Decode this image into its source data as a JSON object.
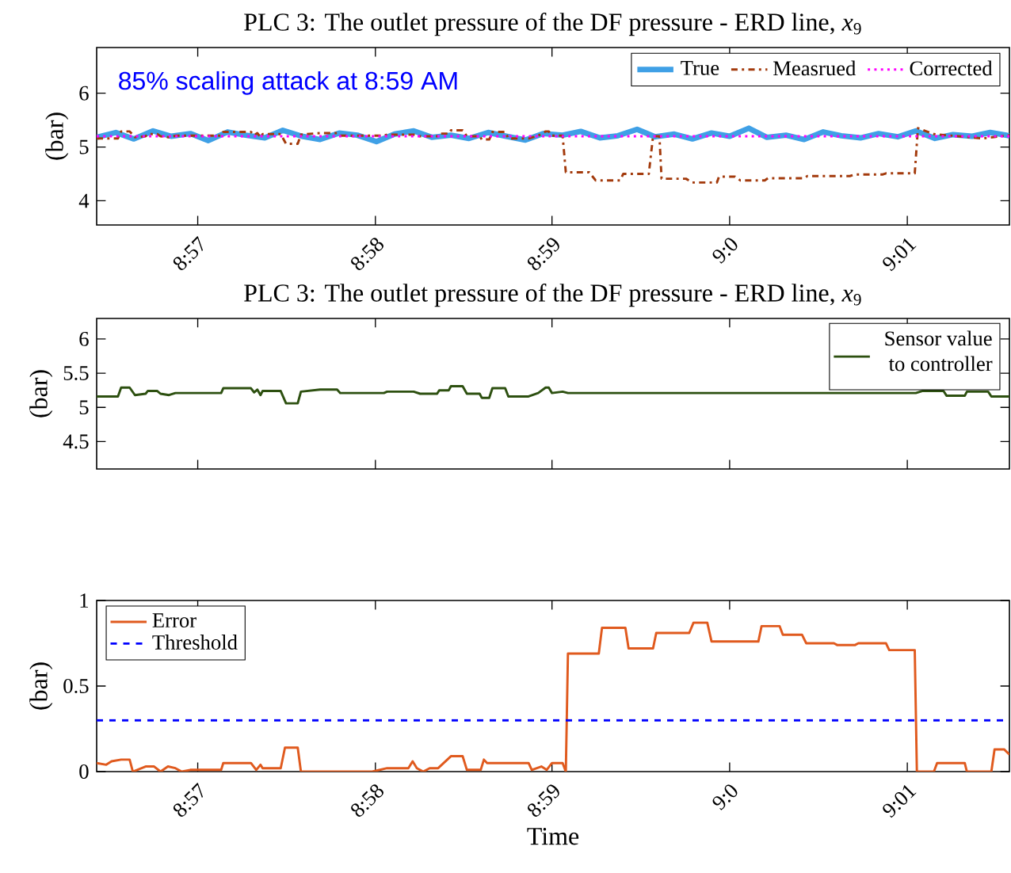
{
  "chart_data": [
    {
      "type": "line",
      "title": "PLC 3: The outlet pressure of the DF pressure - ERD line, *x*$_{9}$",
      "ylabel": "(bar)",
      "annotations": [
        "85% scaling attack at 8:59 AM"
      ],
      "xlim": [
        8.9405,
        9.0263
      ],
      "ylim": [
        3.55,
        6.85
      ],
      "xticks": [
        {
          "value": 8.95,
          "label": "8:57"
        },
        {
          "value": 8.9667,
          "label": "8:58"
        },
        {
          "value": 8.9833,
          "label": "8:59"
        },
        {
          "value": 9.0,
          "label": "9:0"
        },
        {
          "value": 9.0167,
          "label": "9:01"
        }
      ],
      "yticks": [
        4,
        5,
        6
      ],
      "legend": "top right",
      "series": [
        {
          "name": "True",
          "color": "#3fa0e6",
          "line_style": "solid",
          "x": [
            8.9405,
            8.9423,
            8.944,
            8.9458,
            8.9475,
            8.9493,
            8.951,
            8.9528,
            8.9545,
            8.9563,
            8.958,
            8.9598,
            8.9615,
            8.9633,
            8.965,
            8.9668,
            8.9685,
            8.9703,
            8.972,
            8.9738,
            8.9755,
            8.9773,
            8.979,
            8.9808,
            8.9825,
            8.9843,
            8.986,
            8.9878,
            8.9895,
            8.9913,
            8.993,
            8.9948,
            8.9965,
            8.9983,
            9.0,
            9.0018,
            9.0035,
            9.0053,
            9.007,
            9.0088,
            9.0105,
            9.0123,
            9.014,
            9.0158,
            9.0175,
            9.0193,
            9.021,
            9.0228,
            9.0245,
            9.0263
          ],
          "values": [
            5.18,
            5.27,
            5.15,
            5.3,
            5.2,
            5.25,
            5.12,
            5.28,
            5.22,
            5.17,
            5.31,
            5.2,
            5.14,
            5.26,
            5.22,
            5.1,
            5.24,
            5.3,
            5.18,
            5.22,
            5.16,
            5.27,
            5.2,
            5.13,
            5.25,
            5.22,
            5.29,
            5.17,
            5.21,
            5.33,
            5.19,
            5.24,
            5.15,
            5.26,
            5.2,
            5.35,
            5.18,
            5.22,
            5.14,
            5.28,
            5.21,
            5.17,
            5.25,
            5.19,
            5.3,
            5.16,
            5.23,
            5.2,
            5.27,
            5.21
          ]
        },
        {
          "name": "Measrued",
          "color": "#a33a0c",
          "line_style": "dashdot",
          "x": [
            8.9405,
            8.9425,
            8.9428,
            8.9436,
            8.9441,
            8.9451,
            8.9453,
            8.9462,
            8.9465,
            8.9473,
            8.9479,
            8.9522,
            8.9524,
            8.955,
            8.9553,
            8.9556,
            8.9559,
            8.9561,
            8.9578,
            8.9583,
            8.9594,
            8.9597,
            8.9615,
            8.9631,
            8.9634,
            8.9675,
            8.9678,
            8.9703,
            8.9709,
            8.9715,
            8.9725,
            8.9727,
            8.9736,
            8.9738,
            8.9749,
            8.9753,
            8.9765,
            8.9767,
            8.9774,
            8.9777,
            8.9789,
            8.9792,
            8.9811,
            8.982,
            8.9827,
            8.983,
            8.9833,
            8.9843,
            8.9846,
            8.9868,
            8.9874,
            8.9897,
            8.99,
            8.9924,
            8.9928,
            8.9934,
            8.9936,
            8.9959,
            8.9965,
            8.9988,
            8.999,
            9.0005,
            9.001,
            9.0033,
            9.0036,
            9.007,
            9.0073,
            9.0113,
            9.0118,
            9.0144,
            9.0147,
            9.0174,
            9.0177,
            9.0192,
            9.0215,
            9.0238,
            9.0263
          ],
          "values": [
            5.16,
            5.16,
            5.29,
            5.29,
            5.18,
            5.2,
            5.24,
            5.24,
            5.2,
            5.18,
            5.21,
            5.21,
            5.28,
            5.28,
            5.22,
            5.26,
            5.18,
            5.24,
            5.24,
            5.06,
            5.06,
            5.23,
            5.26,
            5.26,
            5.21,
            5.21,
            5.23,
            5.23,
            5.2,
            5.2,
            5.2,
            5.25,
            5.25,
            5.31,
            5.31,
            5.2,
            5.2,
            5.14,
            5.14,
            5.28,
            5.28,
            5.16,
            5.16,
            5.21,
            5.29,
            5.29,
            5.21,
            5.21,
            4.53,
            4.53,
            4.38,
            4.38,
            4.5,
            4.5,
            5.2,
            5.2,
            4.41,
            4.41,
            4.34,
            4.34,
            4.45,
            4.45,
            4.38,
            4.38,
            4.42,
            4.42,
            4.46,
            4.46,
            4.49,
            4.49,
            4.51,
            4.51,
            5.35,
            5.24,
            5.2,
            5.16,
            5.22
          ]
        },
        {
          "name": "Corrected",
          "color": "#ff00ff",
          "line_style": "dotted",
          "x": [
            8.9405,
            9.0263
          ],
          "values": [
            5.2,
            5.2
          ]
        }
      ]
    },
    {
      "type": "line",
      "title": "PLC 3: The outlet pressure of the DF pressure - ERD line, *x*$_{9}$",
      "ylabel": "(bar)",
      "xlim": [
        8.9405,
        9.0263
      ],
      "ylim": [
        4.1,
        6.3
      ],
      "xticks": [
        {
          "value": 8.95,
          "label": null
        },
        {
          "value": 8.9667,
          "label": null
        },
        {
          "value": 8.9833,
          "label": null
        },
        {
          "value": 9.0,
          "label": null
        },
        {
          "value": 9.0167,
          "label": null
        }
      ],
      "yticks": [
        4.5,
        5,
        5.5,
        6
      ],
      "legend": "top right",
      "tick_labels": "y",
      "series": [
        {
          "name": "Sensor value to controller",
          "color": "#2d5010",
          "line_style": "solid",
          "x": [
            8.9405,
            8.9425,
            8.9428,
            8.9436,
            8.9441,
            8.9451,
            8.9453,
            8.9462,
            8.9465,
            8.9473,
            8.9479,
            8.9522,
            8.9524,
            8.955,
            8.9553,
            8.9556,
            8.9559,
            8.9561,
            8.9578,
            8.9583,
            8.9594,
            8.9597,
            8.9615,
            8.9631,
            8.9634,
            8.9675,
            8.9678,
            8.9703,
            8.9709,
            8.9715,
            8.9725,
            8.9727,
            8.9736,
            8.9738,
            8.9749,
            8.9753,
            8.9765,
            8.9767,
            8.9774,
            8.9777,
            8.9789,
            8.9792,
            8.9811,
            8.982,
            8.9827,
            8.983,
            8.9833,
            8.9843,
            8.9848,
            9.0175,
            9.0181,
            9.0201,
            9.0204,
            9.0221,
            9.0223,
            9.0243,
            9.0246,
            9.0263
          ],
          "values": [
            5.16,
            5.16,
            5.29,
            5.29,
            5.18,
            5.2,
            5.24,
            5.24,
            5.2,
            5.18,
            5.21,
            5.21,
            5.28,
            5.28,
            5.22,
            5.26,
            5.18,
            5.24,
            5.24,
            5.06,
            5.06,
            5.23,
            5.26,
            5.26,
            5.21,
            5.21,
            5.23,
            5.23,
            5.2,
            5.2,
            5.2,
            5.25,
            5.25,
            5.31,
            5.31,
            5.2,
            5.2,
            5.14,
            5.14,
            5.28,
            5.28,
            5.16,
            5.16,
            5.21,
            5.29,
            5.29,
            5.21,
            5.23,
            5.21,
            5.21,
            5.24,
            5.24,
            5.17,
            5.17,
            5.23,
            5.23,
            5.16,
            5.16
          ]
        }
      ]
    },
    {
      "type": "line",
      "xlabel": "Time",
      "ylabel": "(bar)",
      "xlim": [
        8.9405,
        9.0263
      ],
      "ylim": [
        0,
        1
      ],
      "xticks": [
        {
          "value": 8.95,
          "label": "8:57"
        },
        {
          "value": 8.9667,
          "label": "8:58"
        },
        {
          "value": 8.9833,
          "label": "8:59"
        },
        {
          "value": 9.0,
          "label": "9:0"
        },
        {
          "value": 9.0167,
          "label": "9:01"
        }
      ],
      "yticks": [
        0,
        0.5,
        1
      ],
      "legend": "top left",
      "ref_lines": [
        {
          "axis": "y",
          "value": 0.3,
          "label": "Threshold",
          "color": "#0000ff",
          "line_style": "dashed"
        }
      ],
      "series": [
        {
          "name": "Error",
          "color": "#e05a1e",
          "line_style": "solid",
          "x": [
            8.9405,
            8.9414,
            8.9419,
            8.9428,
            8.9436,
            8.9439,
            8.9451,
            8.9459,
            8.9465,
            8.9472,
            8.9479,
            8.9485,
            8.9493,
            8.9522,
            8.9524,
            8.955,
            8.9555,
            8.9559,
            8.9561,
            8.9578,
            8.9582,
            8.9594,
            8.9597,
            8.9664,
            8.9678,
            8.9698,
            8.9702,
            8.9706,
            8.9712,
            8.9718,
            8.9726,
            8.9738,
            8.9749,
            8.9753,
            8.9766,
            8.9769,
            8.9772,
            8.9792,
            8.9811,
            8.9814,
            8.9823,
            8.9828,
            8.9833,
            8.9843,
            8.9846,
            8.9848,
            8.9877,
            8.988,
            8.9902,
            8.9905,
            8.9928,
            8.9931,
            8.9962,
            8.9966,
            8.9979,
            8.9983,
            9.0027,
            9.003,
            9.0047,
            9.005,
            9.0068,
            9.0072,
            9.0098,
            9.0101,
            9.0118,
            9.0121,
            9.0147,
            9.015,
            9.0174,
            9.0176,
            9.0192,
            9.0195,
            9.0221,
            9.0223,
            9.0246,
            9.0249,
            9.0258,
            9.0263
          ],
          "values": [
            0.05,
            0.04,
            0.06,
            0.07,
            0.07,
            0,
            0.03,
            0.03,
            0,
            0.03,
            0.02,
            0,
            0.01,
            0.01,
            0.05,
            0.05,
            0.01,
            0.04,
            0.02,
            0.02,
            0.14,
            0.14,
            0,
            0,
            0.02,
            0.02,
            0.06,
            0.02,
            0,
            0.02,
            0.02,
            0.09,
            0.09,
            0.01,
            0.01,
            0.07,
            0.05,
            0.05,
            0.05,
            0.01,
            0.03,
            0.01,
            0.05,
            0.05,
            0,
            0.69,
            0.69,
            0.84,
            0.84,
            0.72,
            0.72,
            0.81,
            0.81,
            0.87,
            0.87,
            0.76,
            0.76,
            0.85,
            0.85,
            0.8,
            0.8,
            0.75,
            0.75,
            0.74,
            0.74,
            0.75,
            0.75,
            0.71,
            0.71,
            0,
            0,
            0.05,
            0.05,
            0,
            0,
            0.13,
            0.13,
            0.1
          ]
        }
      ]
    }
  ]
}
